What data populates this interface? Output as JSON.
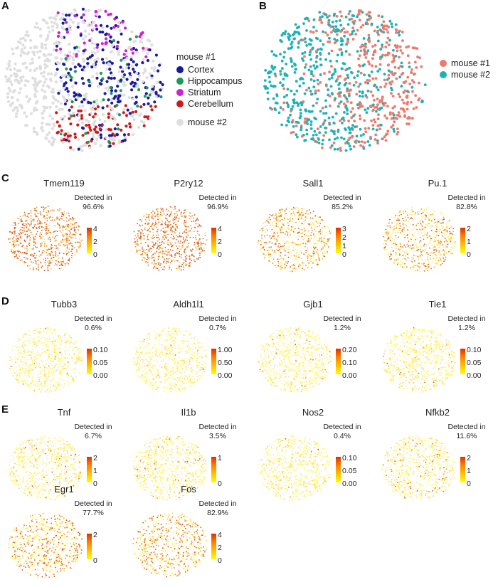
{
  "panels": {
    "A": {
      "letter": "A",
      "legend_title": "mouse #1",
      "entries": [
        {
          "label": "Cortex",
          "color": "#1a1aa0"
        },
        {
          "label": "Hippocampus",
          "color": "#1a9a5a"
        },
        {
          "label": "Striatum",
          "color": "#d020d0"
        },
        {
          "label": "Cerebellum",
          "color": "#d01a1a"
        }
      ],
      "other_label": "mouse #2",
      "other_color": "#dedede"
    },
    "B": {
      "letter": "B",
      "entries": [
        {
          "label": "mouse #1",
          "color": "#ec7a6e"
        },
        {
          "label": "mouse #2",
          "color": "#1bb3b6"
        }
      ]
    },
    "C": {
      "letter": "C"
    },
    "D": {
      "letter": "D"
    },
    "E": {
      "letter": "E"
    }
  },
  "chart_data": [
    {
      "type": "scatter",
      "title": "A",
      "xlabel": "",
      "ylabel": "",
      "legend": "right",
      "series": [
        {
          "name": "Cortex",
          "group": "mouse #1"
        },
        {
          "name": "Hippocampus",
          "group": "mouse #1"
        },
        {
          "name": "Striatum",
          "group": "mouse #1"
        },
        {
          "name": "Cerebellum",
          "group": "mouse #1"
        },
        {
          "name": "mouse #2"
        }
      ]
    },
    {
      "type": "scatter",
      "title": "B",
      "legend": "right",
      "series": [
        {
          "name": "mouse #1"
        },
        {
          "name": "mouse #2"
        }
      ]
    },
    {
      "type": "scatter",
      "title": "Feature plots",
      "detected_label": "Detected in",
      "genes": [
        {
          "panel": "C",
          "gene": "Tmem119",
          "detected": "96.6%",
          "ticks": [
            "4",
            "2",
            "0"
          ],
          "scale_max": 4,
          "level": 0.85
        },
        {
          "panel": "C",
          "gene": "P2ry12",
          "detected": "96.9%",
          "ticks": [
            "4",
            "2",
            "0"
          ],
          "scale_max": 4,
          "level": 0.85
        },
        {
          "panel": "C",
          "gene": "Sall1",
          "detected": "85.2%",
          "ticks": [
            "3",
            "2",
            "1",
            "0"
          ],
          "scale_max": 3,
          "level": 0.45
        },
        {
          "panel": "C",
          "gene": "Pu.1",
          "detected": "82.8%",
          "ticks": [
            "2",
            "1",
            "0"
          ],
          "scale_max": 2,
          "level": 0.4
        },
        {
          "panel": "D",
          "gene": "Tubb3",
          "detected": "0.6%",
          "ticks": [
            "0.10",
            "0.05",
            "0.00"
          ],
          "scale_max": 0.1,
          "level": 0.02
        },
        {
          "panel": "D",
          "gene": "Aldh1l1",
          "detected": "0.7%",
          "ticks": [
            "1.00",
            "0.50",
            "0.00"
          ],
          "scale_max": 1.0,
          "level": 0.02
        },
        {
          "panel": "D",
          "gene": "Gjb1",
          "detected": "1.2%",
          "ticks": [
            "0.20",
            "0.10",
            "0.00"
          ],
          "scale_max": 0.2,
          "level": 0.03
        },
        {
          "panel": "D",
          "gene": "Tie1",
          "detected": "1.2%",
          "ticks": [
            "0.10",
            "0.05",
            "0.00"
          ],
          "scale_max": 0.1,
          "level": 0.03
        },
        {
          "panel": "E",
          "gene": "Tnf",
          "detected": "6.7%",
          "ticks": [
            "2",
            "1",
            "0"
          ],
          "scale_max": 2,
          "level": 0.06
        },
        {
          "panel": "E",
          "gene": "Il1b",
          "detected": "3.5%",
          "ticks": [
            "1",
            "0"
          ],
          "scale_max": 1.5,
          "level": 0.04
        },
        {
          "panel": "E",
          "gene": "Nos2",
          "detected": "0.4%",
          "ticks": [
            "0.10",
            "0.05",
            "0.00"
          ],
          "scale_max": 0.1,
          "level": 0.02
        },
        {
          "panel": "E",
          "gene": "Nfkb2",
          "detected": "11.6%",
          "ticks": [
            "2",
            "1",
            "0"
          ],
          "scale_max": 2.5,
          "level": 0.1
        },
        {
          "panel": "E",
          "gene": "Egr1",
          "detected": "77.7%",
          "ticks": [
            "2",
            "0"
          ],
          "scale_max": 3,
          "level": 0.4
        },
        {
          "panel": "E",
          "gene": "Fos",
          "detected": "82.9%",
          "ticks": [
            "4",
            "2",
            "0"
          ],
          "scale_max": 4,
          "level": 0.4
        }
      ]
    }
  ]
}
